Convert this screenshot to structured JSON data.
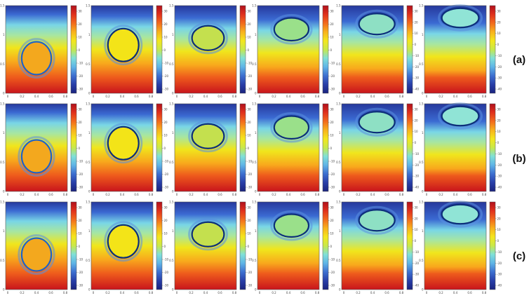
{
  "row_labels": [
    "(a)",
    "(b)",
    "(c)"
  ],
  "rows": [
    {
      "label": "(a)",
      "panels": [
        {
          "x_ticks": [
            "0",
            "0.2",
            "0.4",
            "0.6",
            "0.8"
          ],
          "y_ticks": [
            "0",
            "0.5",
            "1",
            "1.5"
          ],
          "colorbar_ticks": [
            "30",
            "20",
            "10",
            "0",
            "-10",
            "-20",
            "-30"
          ]
        },
        {
          "x_ticks": [
            "0",
            "0.2",
            "0.4",
            "0.6",
            "0.8"
          ],
          "y_ticks": [
            "0",
            "0.5",
            "1",
            "1.5"
          ],
          "colorbar_ticks": [
            "30",
            "20",
            "10",
            "0",
            "-10",
            "-20",
            "-30"
          ]
        },
        {
          "x_ticks": [
            "0",
            "0.2",
            "0.4",
            "0.6",
            "0.8"
          ],
          "y_ticks": [
            "0",
            "0.5",
            "1",
            "1.5"
          ],
          "colorbar_ticks": [
            "30",
            "20",
            "10",
            "0",
            "-10",
            "-20",
            "-30"
          ]
        },
        {
          "x_ticks": [
            "0",
            "0.2",
            "0.4",
            "0.6",
            "0.8"
          ],
          "y_ticks": [
            "0",
            "0.5",
            "1",
            "1.5"
          ],
          "colorbar_ticks": [
            "30",
            "20",
            "10",
            "0",
            "-10",
            "-20",
            "-30"
          ]
        },
        {
          "x_ticks": [
            "0",
            "0.2",
            "0.4",
            "0.6",
            "0.8"
          ],
          "y_ticks": [
            "0",
            "0.5",
            "1",
            "1.5"
          ],
          "colorbar_ticks": [
            "30",
            "20",
            "10",
            "0",
            "-10",
            "-20",
            "-30",
            "-40"
          ]
        },
        {
          "x_ticks": [
            "0",
            "0.2",
            "0.4",
            "0.6",
            "0.8"
          ],
          "y_ticks": [
            "0",
            "0.5",
            "1",
            "1.5"
          ],
          "colorbar_ticks": [
            "30",
            "20",
            "10",
            "0",
            "-10",
            "-20",
            "-30",
            "-40"
          ]
        }
      ]
    },
    {
      "label": "(b)",
      "panels": [
        {
          "x_ticks": [
            "0",
            "0.2",
            "0.4",
            "0.6",
            "0.8"
          ],
          "y_ticks": [
            "0",
            "0.5",
            "1",
            "1.5"
          ],
          "colorbar_ticks": [
            "30",
            "20",
            "10",
            "0",
            "-10",
            "-20",
            "-30"
          ]
        },
        {
          "x_ticks": [
            "0",
            "0.2",
            "0.4",
            "0.6",
            "0.8"
          ],
          "y_ticks": [
            "0",
            "0.5",
            "1",
            "1.5"
          ],
          "colorbar_ticks": [
            "30",
            "20",
            "10",
            "0",
            "-10",
            "-20",
            "-30"
          ]
        },
        {
          "x_ticks": [
            "0",
            "0.2",
            "0.4",
            "0.6",
            "0.8"
          ],
          "y_ticks": [
            "0",
            "0.5",
            "1",
            "1.5"
          ],
          "colorbar_ticks": [
            "30",
            "20",
            "10",
            "0",
            "-10",
            "-20",
            "-30"
          ]
        },
        {
          "x_ticks": [
            "0",
            "0.2",
            "0.4",
            "0.6",
            "0.8"
          ],
          "y_ticks": [
            "0",
            "0.5",
            "1",
            "1.5"
          ],
          "colorbar_ticks": [
            "30",
            "20",
            "10",
            "0",
            "-10",
            "-20",
            "-30"
          ]
        },
        {
          "x_ticks": [
            "0",
            "0.2",
            "0.4",
            "0.6",
            "0.8"
          ],
          "y_ticks": [
            "0",
            "0.5",
            "1",
            "1.5"
          ],
          "colorbar_ticks": [
            "30",
            "20",
            "10",
            "0",
            "-10",
            "-20",
            "-30",
            "-40"
          ]
        },
        {
          "x_ticks": [
            "0",
            "0.2",
            "0.4",
            "0.6",
            "0.8"
          ],
          "y_ticks": [
            "0",
            "0.5",
            "1",
            "1.5"
          ],
          "colorbar_ticks": [
            "30",
            "20",
            "10",
            "0",
            "-10",
            "-20",
            "-30",
            "-40"
          ]
        }
      ]
    },
    {
      "label": "(c)",
      "panels": [
        {
          "x_ticks": [
            "0",
            "0.2",
            "0.4",
            "0.6",
            "0.8"
          ],
          "y_ticks": [
            "0",
            "0.5",
            "1",
            "1.5"
          ],
          "colorbar_ticks": [
            "30",
            "20",
            "10",
            "0",
            "-10",
            "-20",
            "-30"
          ]
        },
        {
          "x_ticks": [
            "0",
            "0.2",
            "0.4",
            "0.6",
            "0.8"
          ],
          "y_ticks": [
            "0",
            "0.5",
            "1",
            "1.5"
          ],
          "colorbar_ticks": [
            "30",
            "20",
            "10",
            "0",
            "-10",
            "-20",
            "-30"
          ]
        },
        {
          "x_ticks": [
            "0",
            "0.2",
            "0.4",
            "0.6",
            "0.8"
          ],
          "y_ticks": [
            "0",
            "0.5",
            "1",
            "1.5"
          ],
          "colorbar_ticks": [
            "30",
            "20",
            "10",
            "0",
            "-10",
            "-20",
            "-30"
          ]
        },
        {
          "x_ticks": [
            "0",
            "0.2",
            "0.4",
            "0.6",
            "0.8"
          ],
          "y_ticks": [
            "0",
            "0.5",
            "1",
            "1.5"
          ],
          "colorbar_ticks": [
            "30",
            "20",
            "10",
            "0",
            "-10",
            "-20",
            "-30"
          ]
        },
        {
          "x_ticks": [
            "0",
            "0.2",
            "0.4",
            "0.6",
            "0.8"
          ],
          "y_ticks": [
            "0",
            "0.5",
            "1",
            "1.5"
          ],
          "colorbar_ticks": [
            "30",
            "20",
            "10",
            "0",
            "-10",
            "-20",
            "-30",
            "-40"
          ]
        },
        {
          "x_ticks": [
            "0",
            "0.2",
            "0.4",
            "0.6",
            "0.8"
          ],
          "y_ticks": [
            "0",
            "0.5",
            "1",
            "1.5"
          ],
          "colorbar_ticks": [
            "30",
            "20",
            "10",
            "0",
            "-10",
            "-20",
            "-30",
            "-40"
          ]
        }
      ]
    }
  ],
  "colormap": [
    "#1a237e",
    "#283ea8",
    "#3d6fd0",
    "#5fb4e6",
    "#7fe0d8",
    "#c8e84a",
    "#f4e61c",
    "#f8b21c",
    "#f26a1c",
    "#e0301c",
    "#b0101c"
  ]
}
